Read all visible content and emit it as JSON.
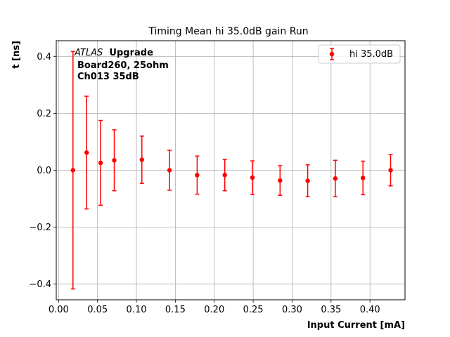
{
  "chart_data": {
    "type": "scatter",
    "title": "Timing Mean hi 35.0dB gain Run",
    "xlabel": "Input Current [mA]",
    "ylabel": "t [ns]",
    "xlim": [
      -0.003,
      0.445
    ],
    "ylim": [
      -0.455,
      0.455
    ],
    "xticks": [
      0.0,
      0.05,
      0.1,
      0.15,
      0.2,
      0.25,
      0.3,
      0.35,
      0.4
    ],
    "xtick_labels": [
      "0.00",
      "0.05",
      "0.10",
      "0.15",
      "0.20",
      "0.25",
      "0.30",
      "0.35",
      "0.40"
    ],
    "yticks": [
      -0.4,
      -0.2,
      0.0,
      0.2,
      0.4
    ],
    "ytick_labels": [
      "−0.4",
      "−0.2",
      "0.0",
      "0.2",
      "0.4"
    ],
    "grid": true,
    "legend_position": "top-right",
    "annotation": {
      "experiment": "ATLAS",
      "tag": "Upgrade",
      "line2": "Board260, 25ohm",
      "line3": "Ch013 35dB"
    },
    "series": [
      {
        "name": "hi 35.0dB",
        "color": "#ff0000",
        "x": [
          0.0185,
          0.036,
          0.054,
          0.0715,
          0.107,
          0.1425,
          0.178,
          0.2135,
          0.249,
          0.2845,
          0.32,
          0.3555,
          0.391,
          0.4265
        ],
        "y": [
          0.0,
          0.062,
          0.026,
          0.035,
          0.037,
          0.0,
          -0.017,
          -0.017,
          -0.026,
          -0.036,
          -0.037,
          -0.029,
          -0.027,
          0.0
        ],
        "yerr": [
          0.417,
          0.198,
          0.149,
          0.107,
          0.083,
          0.07,
          0.067,
          0.055,
          0.059,
          0.052,
          0.056,
          0.064,
          0.059,
          0.055
        ]
      }
    ]
  }
}
